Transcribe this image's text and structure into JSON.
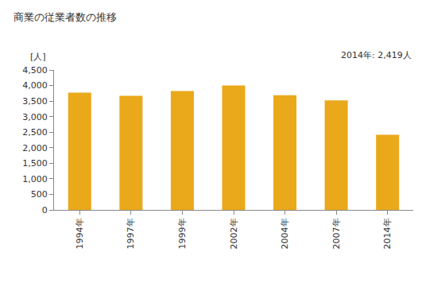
{
  "chart_data": {
    "type": "bar",
    "title": "商業の従業者数の推移",
    "ylabel": "[人]",
    "annotation": "2014年: 2,419人",
    "categories": [
      "1994年",
      "1997年",
      "1999年",
      "2002年",
      "2004年",
      "2007年",
      "2014年"
    ],
    "values": [
      3770,
      3670,
      3820,
      4000,
      3690,
      3520,
      2419
    ],
    "color": "#eaa91b",
    "ylim": [
      0,
      4500
    ],
    "yticks": [
      0,
      500,
      {
        "value": 1000,
        "label": "1,000"
      },
      {
        "value": 1500,
        "label": "1,500"
      },
      {
        "value": 2000,
        "label": "2,000"
      },
      {
        "value": 2500,
        "label": "2,500"
      },
      {
        "value": 3000,
        "label": "3,000"
      },
      {
        "value": 3500,
        "label": "3,500"
      },
      {
        "value": 4000,
        "label": "4,000"
      },
      {
        "value": 4500,
        "label": "4,500"
      }
    ],
    "grid": false
  }
}
